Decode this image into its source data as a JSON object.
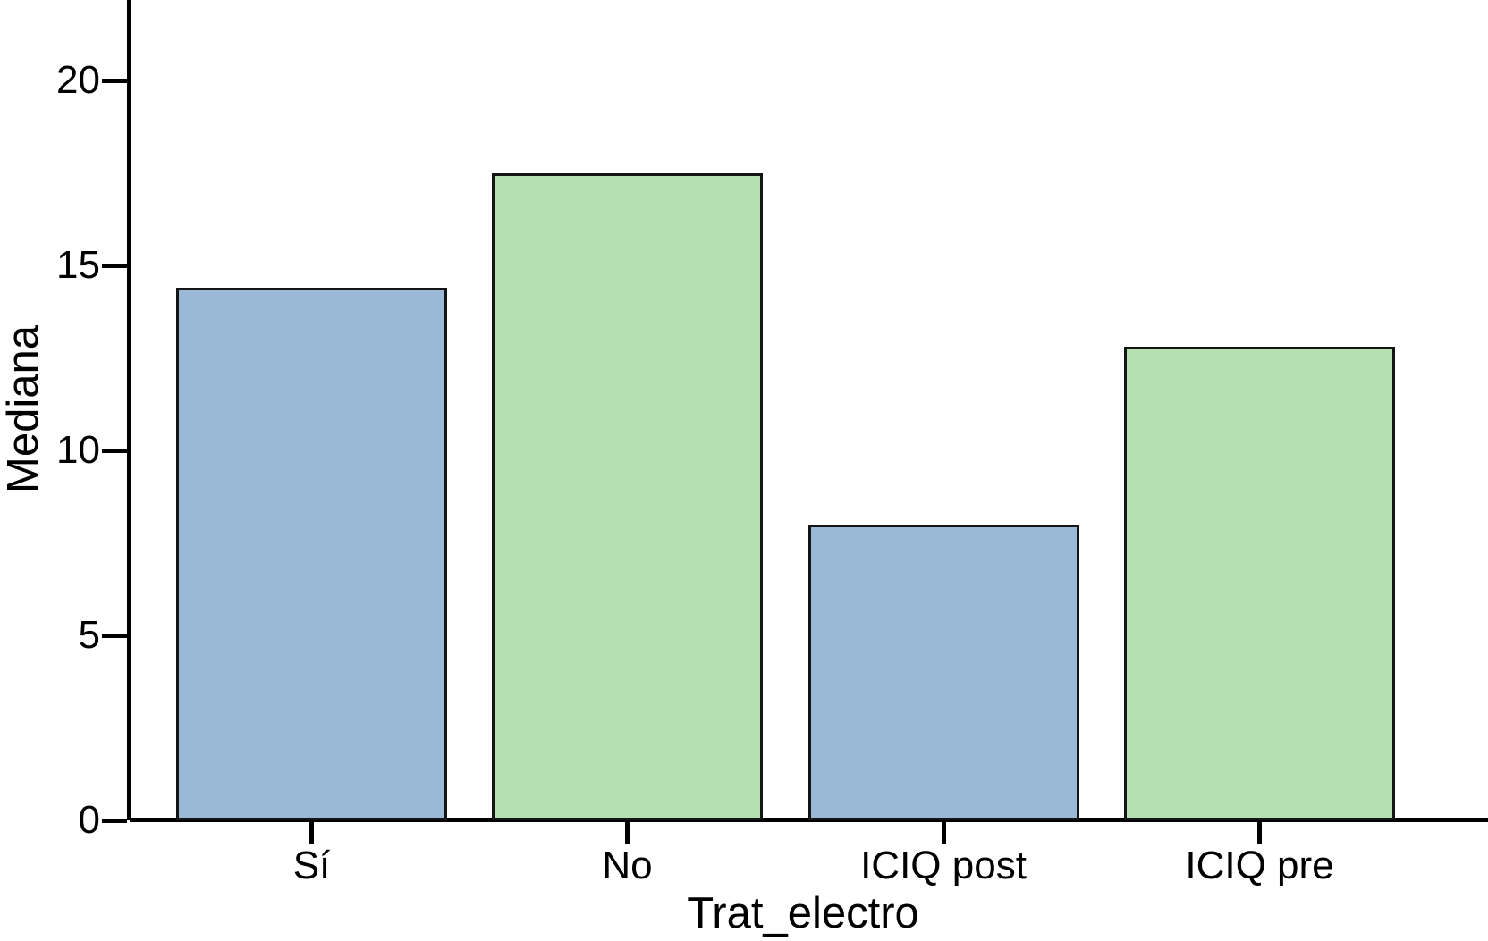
{
  "chart_data": {
    "type": "bar",
    "title": "",
    "xlabel": "Trat_electro",
    "ylabel": "Mediana",
    "categories": [
      "Sí",
      "No",
      "ICIQ post",
      "ICIQ pre"
    ],
    "values": [
      14.4,
      17.5,
      8,
      12.8
    ],
    "bar_colors": [
      "#9ab9d6",
      "#b5e0b2",
      "#9ab9d6",
      "#b5e0b2"
    ],
    "bar_border_color": "#141414",
    "axis_color": "#000000",
    "y_ticks": [
      0,
      5,
      10,
      15,
      20
    ],
    "ylim": [
      0,
      22.2
    ],
    "grid": false,
    "legend": false,
    "background": "#ffffff"
  }
}
